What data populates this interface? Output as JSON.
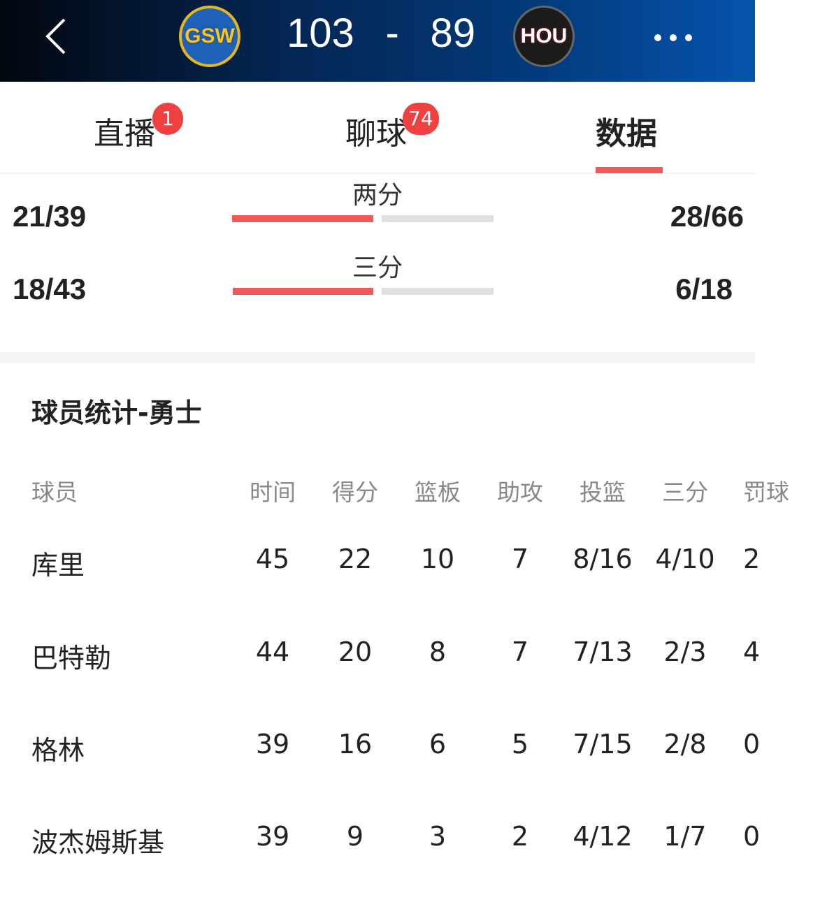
{
  "header": {
    "home_team": "GSW",
    "away_team": "HOU",
    "home_score": "103",
    "separator": "-",
    "away_score": "89"
  },
  "tabs": [
    {
      "label": "直播",
      "badge": "1"
    },
    {
      "label": "聊球",
      "badge": "74"
    },
    {
      "label": "数据",
      "active": true
    }
  ],
  "shooting": [
    {
      "label": "两分",
      "home": "21/39",
      "away": "28/66"
    },
    {
      "label": "三分",
      "home": "18/43",
      "away": "6/18"
    }
  ],
  "colors": {
    "accent": "#ee5a5a",
    "bar_bg": "#e0e0e0",
    "badge": "#f04040"
  },
  "section_title": "球员统计-勇士",
  "table": {
    "headers": [
      "球员",
      "时间",
      "得分",
      "篮板",
      "助攻",
      "投篮",
      "三分",
      "罚球"
    ],
    "rows": [
      [
        "库里",
        "45",
        "22",
        "10",
        "7",
        "8/16",
        "4/10",
        "2"
      ],
      [
        "巴特勒",
        "44",
        "20",
        "8",
        "7",
        "7/13",
        "2/3",
        "4"
      ],
      [
        "格林",
        "39",
        "16",
        "6",
        "5",
        "7/15",
        "2/8",
        "0"
      ],
      [
        "波杰姆斯基",
        "39",
        "9",
        "3",
        "2",
        "4/12",
        "1/7",
        "0"
      ]
    ]
  }
}
